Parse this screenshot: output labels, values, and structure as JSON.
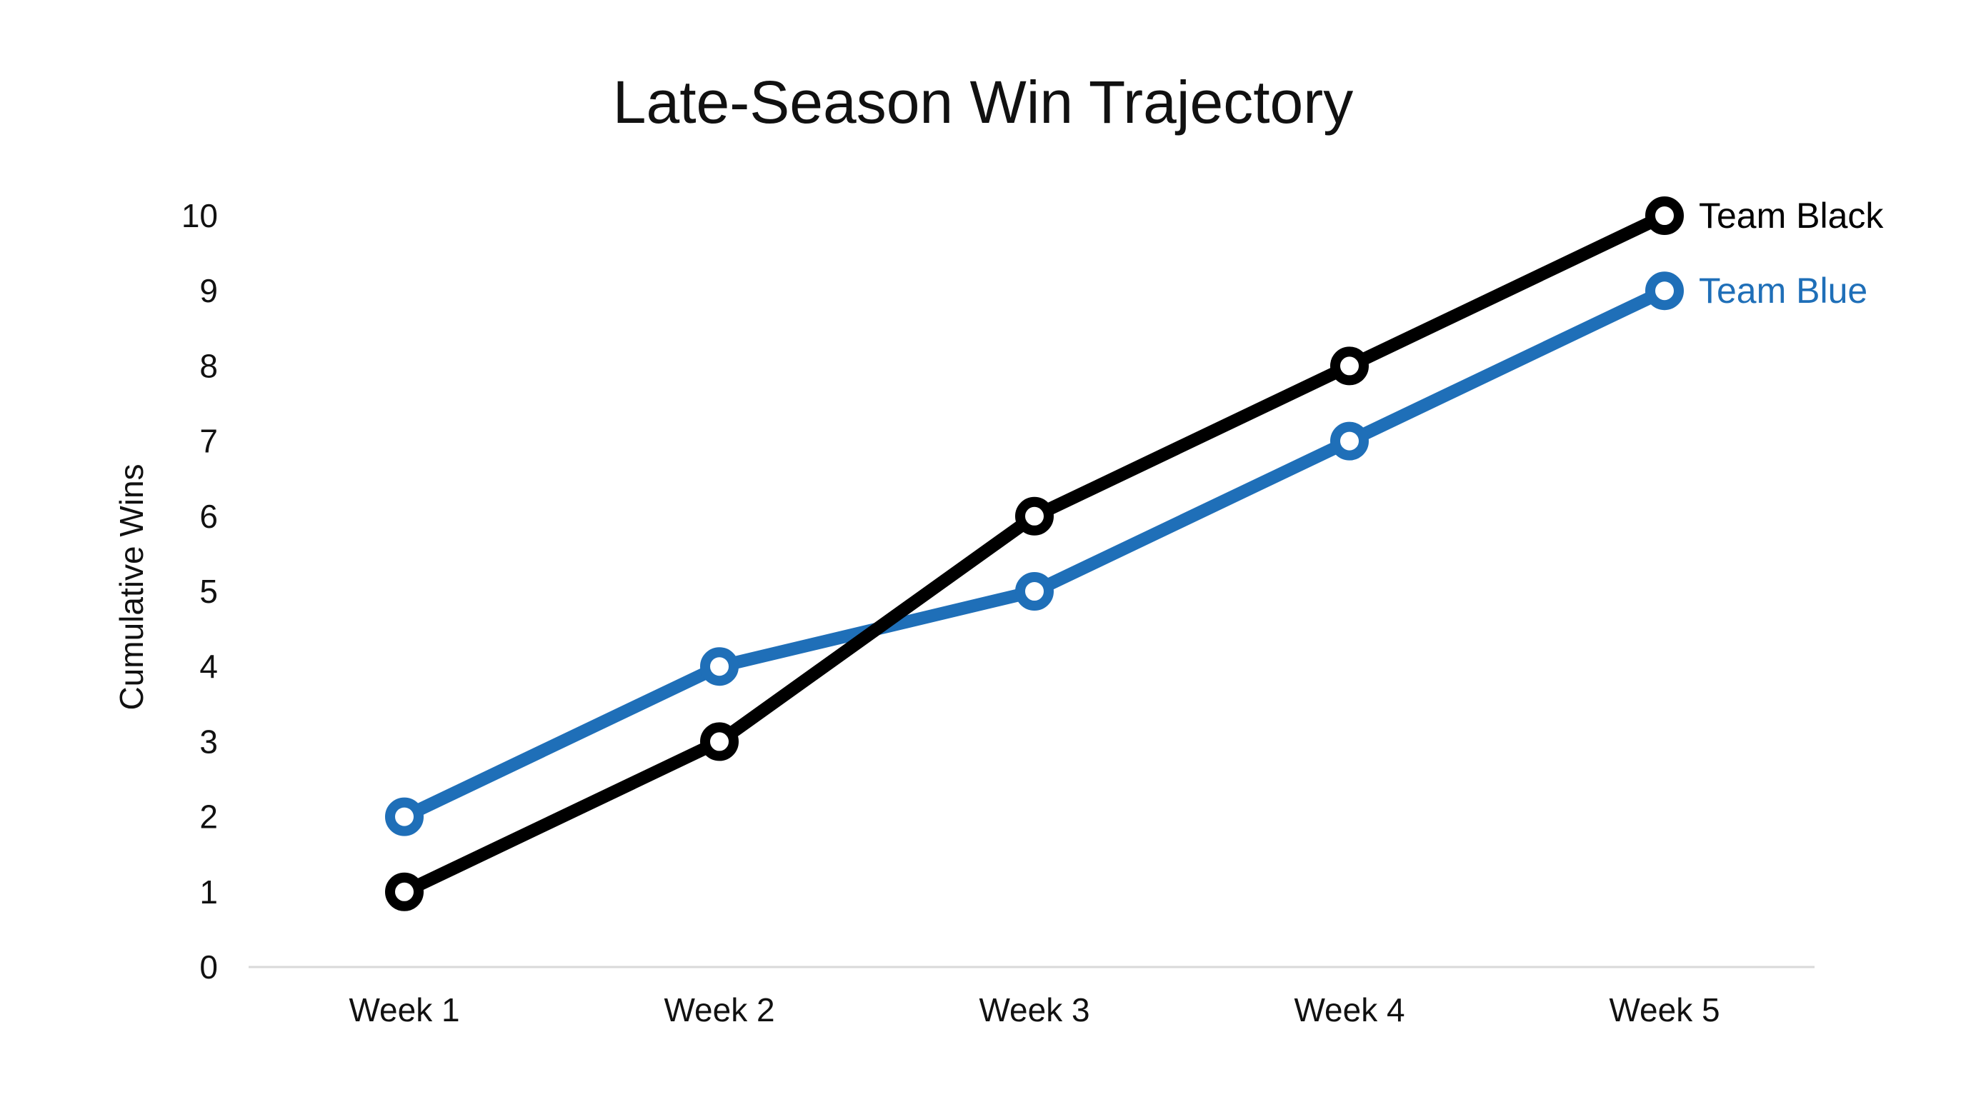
{
  "chart_data": {
    "type": "line",
    "title": "Late-Season Win Trajectory",
    "xlabel": "",
    "ylabel": "Cumulative Wins",
    "categories": [
      "Week 1",
      "Week 2",
      "Week 3",
      "Week 4",
      "Week 5"
    ],
    "ylim": [
      0,
      10
    ],
    "yticks": [
      "0",
      "1",
      "2",
      "3",
      "4",
      "5",
      "6",
      "7",
      "8",
      "9",
      "10"
    ],
    "grid": false,
    "legend": "direct labels at line ends (right)",
    "series": [
      {
        "name": "Team Black",
        "color": "#000000",
        "values": [
          1,
          3,
          6,
          8,
          10
        ]
      },
      {
        "name": "Team Blue",
        "color": "#1f6fb8",
        "values": [
          2,
          4,
          5,
          7,
          9
        ]
      }
    ]
  }
}
